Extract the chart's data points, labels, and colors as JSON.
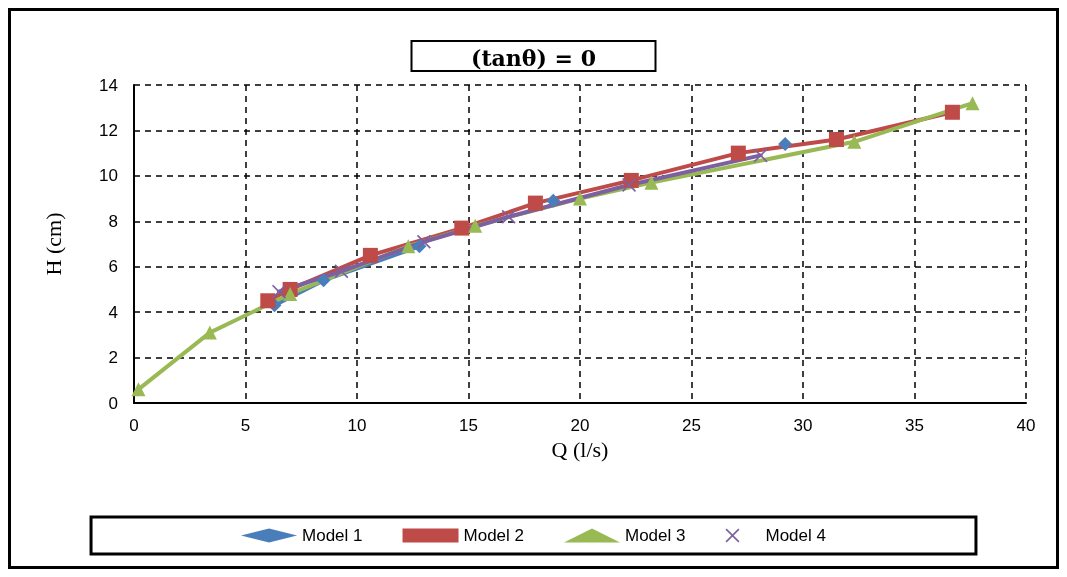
{
  "chart_data": {
    "type": "line",
    "title": "(tanθ) = 0",
    "xlabel": "Q (l/s)",
    "ylabel": "H (cm)",
    "xlim": [
      0,
      40
    ],
    "xticks": [
      0,
      5,
      10,
      15,
      20,
      25,
      30,
      35,
      40
    ],
    "ylim": [
      0,
      14
    ],
    "yticks": [
      0,
      2,
      4,
      6,
      8,
      10,
      12,
      14
    ],
    "grid": true,
    "legend": "bottom",
    "line_style": "solid",
    "series": [
      {
        "name": "Model 1",
        "color": "#4a7ebb",
        "marker": "diamond",
        "x": [
          6.3,
          8.5,
          12.8,
          15,
          18.8,
          22.5,
          29.2
        ],
        "values": [
          4.3,
          5.4,
          6.9,
          null,
          8.9,
          null,
          11.4
        ]
      },
      {
        "name": "Model 2",
        "color": "#be4b48",
        "marker": "square",
        "x": [
          6,
          7,
          10.6,
          14.7,
          18,
          22.3,
          27.1,
          31.5,
          36.7
        ],
        "values": [
          4.5,
          5.0,
          6.5,
          7.7,
          8.8,
          9.8,
          11.0,
          11.6,
          12.8
        ]
      },
      {
        "name": "Model 3",
        "color": "#98b954",
        "marker": "triangle",
        "x": [
          0.2,
          3.4,
          7,
          12.3,
          15.3,
          20,
          23.2,
          32.3,
          37.6
        ],
        "values": [
          0.6,
          3.1,
          4.8,
          6.9,
          7.8,
          9.0,
          9.7,
          11.5,
          13.2
        ]
      },
      {
        "name": "Model 4",
        "color": "#7d60a0",
        "marker": "cross",
        "x": [
          6.5,
          9.3,
          13,
          16.8,
          22.2,
          28.1
        ],
        "values": [
          4.9,
          5.8,
          7.1,
          8.2,
          9.6,
          10.9
        ]
      }
    ]
  }
}
